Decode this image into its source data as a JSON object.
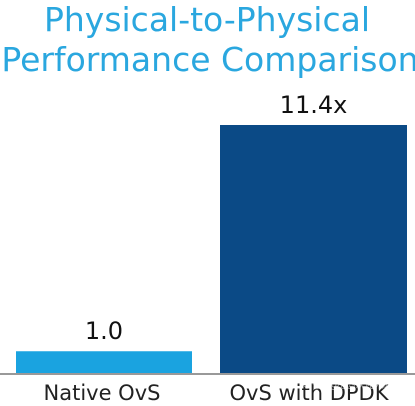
{
  "chart_data": {
    "type": "bar",
    "title": "Physical-to-Physical Performance Comparison",
    "title_lines": [
      "Physical-to-Physical",
      "Performance Comparison"
    ],
    "categories": [
      "Native OvS",
      "OvS with DPDK"
    ],
    "values": [
      1.0,
      11.4
    ],
    "data_labels": [
      "1.0",
      "11.4x"
    ],
    "xlabel": "",
    "ylabel": "",
    "ylim": [
      0,
      11.4
    ],
    "grid": false,
    "legend": "none"
  },
  "colors": {
    "title": "#2aa7df",
    "bars": [
      "#1aa3e0",
      "#0b4a86"
    ],
    "axis": "#999999",
    "text": "#111111"
  },
  "watermark": {
    "text": "知乎 @虚拟化和网络"
  }
}
